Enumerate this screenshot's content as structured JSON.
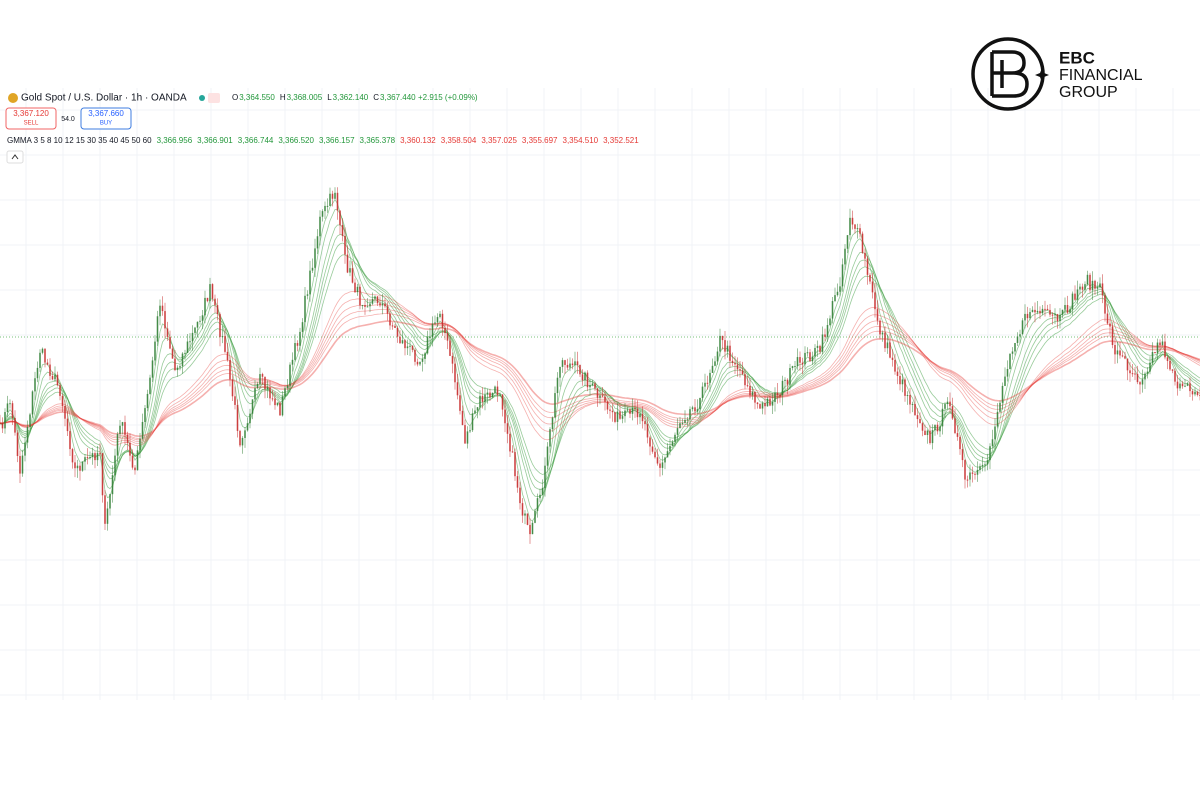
{
  "header": {
    "symbol": "Gold Spot / U.S. Dollar · 1h · OANDA",
    "ohlc": [
      {
        "label": "O",
        "value": "3,364.550"
      },
      {
        "label": "H",
        "value": "3,368.005"
      },
      {
        "label": "L",
        "value": "3,362.140"
      },
      {
        "label": "C",
        "value": "3,367.440"
      }
    ],
    "change": "+2.915 (+0.09%)"
  },
  "trade": {
    "sell_price": "3,367.120",
    "sell": "SELL",
    "spread": "54.0",
    "buy_price": "3,367.660",
    "buy": "BUY"
  },
  "indicator": {
    "name": "GMMA 3 5 8 10 12 15 30 35 40 45 50 60",
    "values": [
      "3,366.956",
      "3,366.901",
      "3,366.744",
      "3,366.520",
      "3,366.157",
      "3,365.378",
      "3,360.132",
      "3,358.504",
      "3,357.025",
      "3,355.697",
      "3,354.510",
      "3,352.521"
    ],
    "colors": [
      "#22973a",
      "#22973a",
      "#22973a",
      "#22973a",
      "#22973a",
      "#22973a",
      "#e53935",
      "#e53935",
      "#e53935",
      "#e53935",
      "#e53935",
      "#e53935"
    ]
  },
  "logo": {
    "brand": "EBC",
    "line1": "FINANCIAL",
    "line2": "GROUP"
  }
}
